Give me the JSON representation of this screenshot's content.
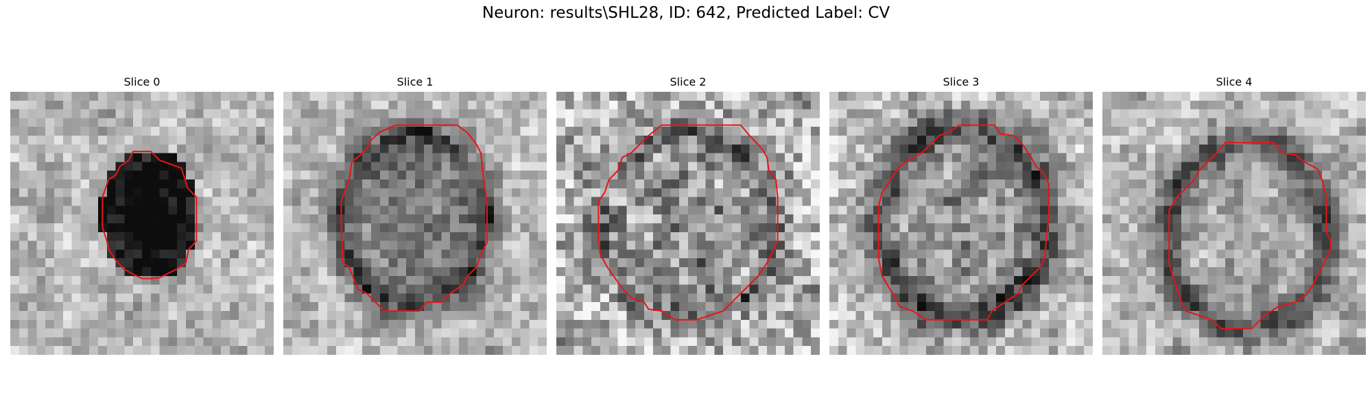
{
  "figure": {
    "title": "Neuron: results\\SHL28, ID: 642, Predicted Label: CV",
    "contour_color": "#e8141a",
    "panels": [
      {
        "title": "Slice 0"
      },
      {
        "title": "Slice 1"
      },
      {
        "title": "Slice 2"
      },
      {
        "title": "Slice 3"
      },
      {
        "title": "Slice 4"
      }
    ]
  }
}
